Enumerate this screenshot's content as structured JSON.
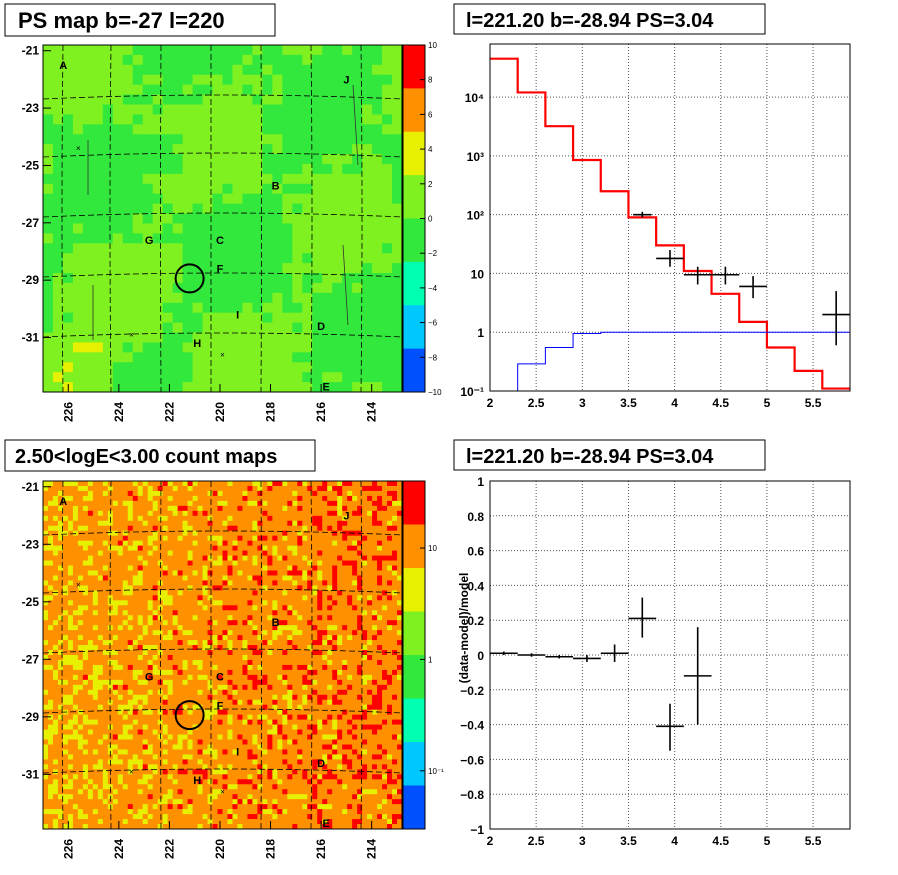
{
  "chart_data": [
    {
      "type": "heatmap",
      "title": "PS map b=-27 l=220",
      "x_ticks": [
        "226",
        "224",
        "222",
        "220",
        "218",
        "216",
        "214"
      ],
      "y_ticks": [
        "-21",
        "-23",
        "-25",
        "-27",
        "-29",
        "-31"
      ],
      "colorbar_ticks": [
        "10",
        "8",
        "6",
        "4",
        "2",
        "0",
        "−2",
        "−4",
        "−6",
        "−8",
        "−10"
      ],
      "xlim": [
        227.0,
        212.8
      ],
      "ylim": [
        -32.9,
        -20.8
      ],
      "colorbar_range": [
        -10,
        10
      ],
      "sources": [
        {
          "label": "A",
          "l": 226.2,
          "b": -21.5
        },
        {
          "label": "J",
          "l": 215.0,
          "b": -22.0
        },
        {
          "label": "B",
          "l": 217.8,
          "b": -25.7
        },
        {
          "label": "G",
          "l": 222.8,
          "b": -27.6
        },
        {
          "label": "C",
          "l": 220.0,
          "b": -27.6
        },
        {
          "label": "F",
          "l": 220.0,
          "b": -28.6
        },
        {
          "label": "I",
          "l": 219.3,
          "b": -30.2
        },
        {
          "label": "D",
          "l": 216.0,
          "b": -30.6
        },
        {
          "label": "H",
          "l": 220.9,
          "b": -31.2
        },
        {
          "label": "E",
          "l": 215.8,
          "b": -32.7
        }
      ],
      "markers": [
        {
          "l": 221.2,
          "b": -28.94
        }
      ]
    },
    {
      "type": "line",
      "title": "l=221.20 b=-28.94 PS=3.04",
      "x_ticks": [
        "2",
        "2.5",
        "3",
        "3.5",
        "4",
        "4.5",
        "5",
        "5.5"
      ],
      "y_ticks": [
        "10⁻¹",
        "1",
        "10",
        "10²",
        "10³",
        "10⁴"
      ],
      "xlim": [
        2.0,
        5.9
      ],
      "ylim": [
        0.1,
        80000
      ],
      "yscale": "log",
      "series": [
        {
          "color": "#ff0000",
          "edges": [
            2.0,
            2.3,
            2.6,
            2.9,
            3.2,
            3.5,
            3.8,
            4.1,
            4.4,
            4.7,
            5.0,
            5.3,
            5.6,
            5.9
          ],
          "values": [
            45000,
            12000,
            3200,
            850,
            250,
            90,
            30,
            11,
            4.5,
            1.5,
            0.55,
            0.22,
            0.11
          ]
        },
        {
          "color": "#0000ff",
          "edges": [
            2.0,
            2.3,
            2.6,
            2.9,
            3.2,
            3.5,
            3.8,
            4.1,
            4.4,
            4.7,
            5.0,
            5.3,
            5.6,
            5.9
          ],
          "values": [
            0.1,
            0.29,
            0.55,
            0.95,
            1.0,
            1.0,
            1.0,
            1.0,
            1.0,
            1.0,
            1.0,
            1.0,
            1.0
          ]
        }
      ],
      "points": [
        {
          "x": 3.65,
          "y": 100,
          "xerr": 0.1,
          "ylo": 90,
          "yhi": 112
        },
        {
          "x": 3.95,
          "y": 18,
          "xerr": 0.15,
          "ylo": 13,
          "yhi": 25
        },
        {
          "x": 4.25,
          "y": 9.5,
          "xerr": 0.15,
          "ylo": 6.5,
          "yhi": 13
        },
        {
          "x": 4.55,
          "y": 9.5,
          "xerr": 0.15,
          "ylo": 6.5,
          "yhi": 13
        },
        {
          "x": 4.85,
          "y": 6,
          "xerr": 0.15,
          "ylo": 3.8,
          "yhi": 9
        },
        {
          "x": 5.75,
          "y": 2,
          "xerr": 0.15,
          "ylo": 0.6,
          "yhi": 5
        }
      ]
    },
    {
      "type": "heatmap",
      "title": "2.50<logE<3.00 count maps",
      "x_ticks": [
        "226",
        "224",
        "222",
        "220",
        "218",
        "216",
        "214"
      ],
      "y_ticks": [
        "-21",
        "-23",
        "-25",
        "-27",
        "-29",
        "-31"
      ],
      "colorbar_ticks": [
        "10",
        "1",
        "10⁻¹"
      ],
      "xlim": [
        227.0,
        212.8
      ],
      "ylim": [
        -32.9,
        -20.8
      ],
      "colorbar_range": [
        0.03,
        40
      ],
      "colorbar_scale": "log",
      "sources": [
        {
          "label": "A",
          "l": 226.2,
          "b": -21.5
        },
        {
          "label": "J",
          "l": 215.0,
          "b": -22.0
        },
        {
          "label": "B",
          "l": 217.8,
          "b": -25.7
        },
        {
          "label": "G",
          "l": 222.8,
          "b": -27.6
        },
        {
          "label": "C",
          "l": 220.0,
          "b": -27.6
        },
        {
          "label": "F",
          "l": 220.0,
          "b": -28.6
        },
        {
          "label": "I",
          "l": 219.3,
          "b": -30.2
        },
        {
          "label": "D",
          "l": 216.0,
          "b": -30.6
        },
        {
          "label": "H",
          "l": 220.9,
          "b": -31.2
        },
        {
          "label": "E",
          "l": 215.8,
          "b": -32.7
        }
      ],
      "markers": [
        {
          "l": 221.2,
          "b": -28.94
        }
      ]
    },
    {
      "type": "scatter",
      "title": "l=221.20 b=-28.94 PS=3.04",
      "ylabel": "(data-model)/model",
      "x_ticks": [
        "2",
        "2.5",
        "3",
        "3.5",
        "4",
        "4.5",
        "5",
        "5.5"
      ],
      "y_ticks": [
        "−1",
        "−0.8",
        "−0.6",
        "−0.4",
        "−0.2",
        "0",
        "0.2",
        "0.4",
        "0.6",
        "0.8",
        "1"
      ],
      "xlim": [
        2.0,
        5.9
      ],
      "ylim": [
        -1,
        1
      ],
      "points": [
        {
          "x": 2.15,
          "y": 0.01,
          "xerr": 0.15,
          "ylo": 0.0,
          "yhi": 0.02
        },
        {
          "x": 2.45,
          "y": 0.0,
          "xerr": 0.15,
          "ylo": -0.01,
          "yhi": 0.01
        },
        {
          "x": 2.75,
          "y": -0.01,
          "xerr": 0.15,
          "ylo": -0.02,
          "yhi": 0.0
        },
        {
          "x": 3.05,
          "y": -0.02,
          "xerr": 0.15,
          "ylo": -0.04,
          "yhi": 0.0
        },
        {
          "x": 3.35,
          "y": 0.01,
          "xerr": 0.15,
          "ylo": -0.04,
          "yhi": 0.06
        },
        {
          "x": 3.65,
          "y": 0.21,
          "xerr": 0.15,
          "ylo": 0.1,
          "yhi": 0.33
        },
        {
          "x": 3.95,
          "y": -0.41,
          "xerr": 0.15,
          "ylo": -0.55,
          "yhi": -0.28
        },
        {
          "x": 4.25,
          "y": -0.12,
          "xerr": 0.15,
          "ylo": -0.4,
          "yhi": 0.16
        }
      ]
    }
  ]
}
